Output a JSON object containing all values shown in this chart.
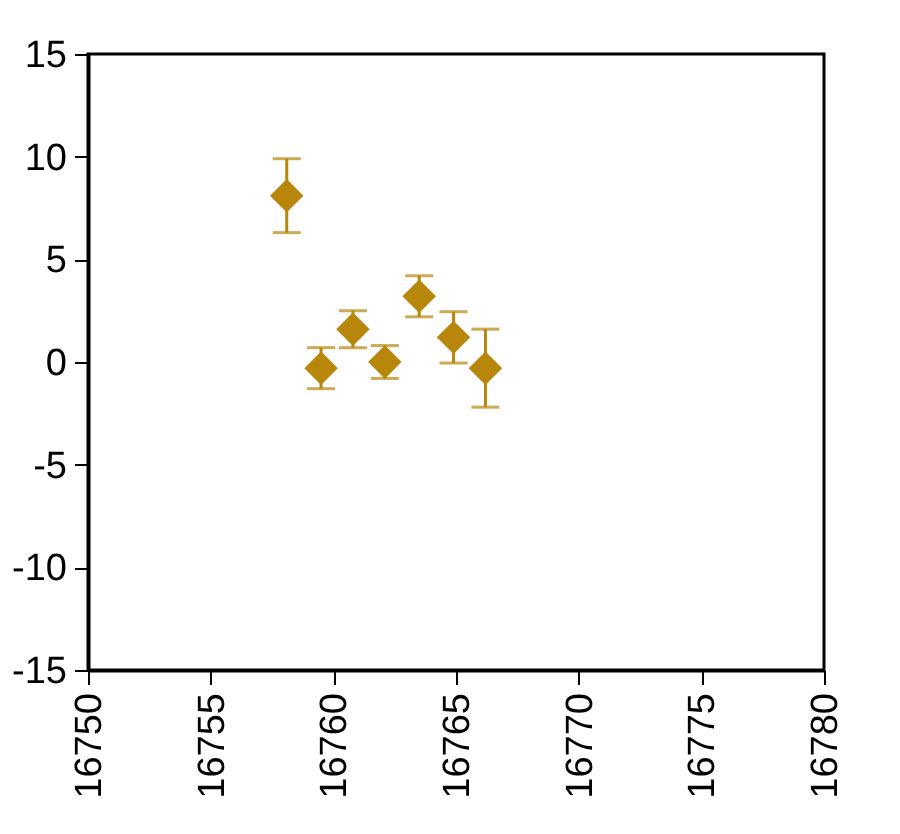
{
  "chart_data": {
    "type": "scatter",
    "x": [
      16758.1,
      16759.5,
      16760.8,
      16762.1,
      16763.5,
      16764.9,
      16766.2
    ],
    "series": [
      {
        "color": "#b8860b",
        "values": [
          8.1,
          -0.3,
          1.6,
          0,
          3.2,
          1.2,
          -0.3
        ],
        "errors": [
          1.8,
          1,
          0.9,
          0.8,
          1,
          1.25,
          1.9
        ]
      }
    ],
    "marker": "diamond",
    "xlim": [
      16750,
      16780
    ],
    "xticks": [
      16750,
      16755,
      16760,
      16765,
      16770,
      16775,
      16780
    ],
    "ylim": [
      -15,
      15
    ],
    "yticks": [
      -15,
      -10,
      -5,
      0,
      5,
      10,
      15
    ],
    "grid": false
  }
}
